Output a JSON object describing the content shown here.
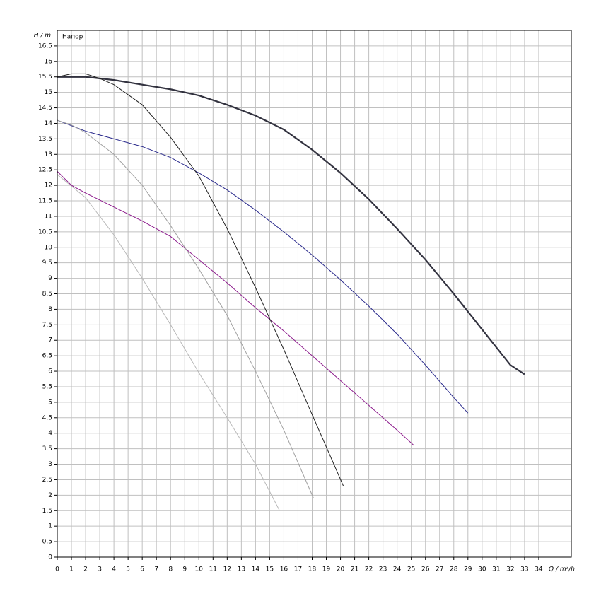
{
  "chart_data": {
    "type": "line",
    "ylabel": "H / m",
    "xlabel": "Q / m³/h",
    "annotation": "Напор",
    "xlim": [
      0,
      36.3
    ],
    "ylim": [
      0,
      17
    ],
    "xticks": [
      0,
      1,
      2,
      3,
      4,
      5,
      6,
      7,
      8,
      9,
      10,
      11,
      12,
      13,
      14,
      15,
      16,
      17,
      18,
      19,
      20,
      21,
      22,
      23,
      24,
      25,
      26,
      27,
      28,
      29,
      30,
      31,
      32,
      33,
      34
    ],
    "yticks": [
      0,
      0.5,
      1,
      1.5,
      2,
      2.5,
      3,
      3.5,
      4,
      4.5,
      5,
      5.5,
      6,
      6.5,
      7,
      7.5,
      8,
      8.5,
      9,
      9.5,
      10,
      10.5,
      11,
      11.5,
      12,
      12.5,
      13,
      13.5,
      14,
      14.5,
      15,
      15.5,
      16,
      16.5
    ],
    "grid": true,
    "series": [
      {
        "color": "#333340",
        "x": [
          0,
          2,
          4,
          6,
          8,
          10,
          12,
          14,
          16,
          18,
          20,
          22,
          24,
          26,
          28,
          30,
          32,
          33
        ],
        "values": [
          15.5,
          15.5,
          15.4,
          15.25,
          15.1,
          14.9,
          14.6,
          14.25,
          13.8,
          13.15,
          12.4,
          11.55,
          10.6,
          9.6,
          8.5,
          7.35,
          6.2,
          5.9
        ]
      },
      {
        "color": "#2a2a8c",
        "x": [
          0,
          2,
          4,
          6,
          8,
          10,
          12,
          14,
          16,
          18,
          20,
          22,
          24,
          26,
          28,
          29
        ],
        "values": [
          14.1,
          13.75,
          13.5,
          13.25,
          12.9,
          12.4,
          11.85,
          11.2,
          10.5,
          9.75,
          8.95,
          8.1,
          7.2,
          6.2,
          5.15,
          4.65
        ]
      },
      {
        "color": "#8c1a8c",
        "x": [
          0,
          1,
          2,
          4,
          6,
          8,
          10,
          12,
          14,
          16,
          18,
          20,
          22,
          24,
          25.2
        ],
        "values": [
          12.45,
          12.0,
          11.75,
          11.3,
          10.85,
          10.35,
          9.6,
          8.85,
          8.05,
          7.3,
          6.5,
          5.7,
          4.9,
          4.1,
          3.6
        ]
      },
      {
        "color": "#222222",
        "x": [
          0,
          1,
          2,
          3,
          4,
          6,
          8,
          10,
          12,
          14,
          16,
          18,
          20.2
        ],
        "values": [
          15.5,
          15.6,
          15.6,
          15.45,
          15.25,
          14.6,
          13.55,
          12.3,
          10.6,
          8.7,
          6.7,
          4.6,
          2.3
        ]
      },
      {
        "color": "#a0a0a0",
        "x": [
          0,
          1,
          2,
          4,
          6,
          8,
          10,
          12,
          14,
          16,
          18.1
        ],
        "values": [
          14.1,
          13.95,
          13.7,
          13.0,
          12.0,
          10.7,
          9.3,
          7.8,
          6.0,
          4.1,
          1.9
        ]
      },
      {
        "color": "#b8b8b8",
        "x": [
          0,
          2,
          4,
          6,
          8,
          10,
          12,
          14,
          15.7
        ],
        "values": [
          12.35,
          11.6,
          10.4,
          9.0,
          7.5,
          5.95,
          4.5,
          3.0,
          1.5
        ]
      }
    ]
  }
}
